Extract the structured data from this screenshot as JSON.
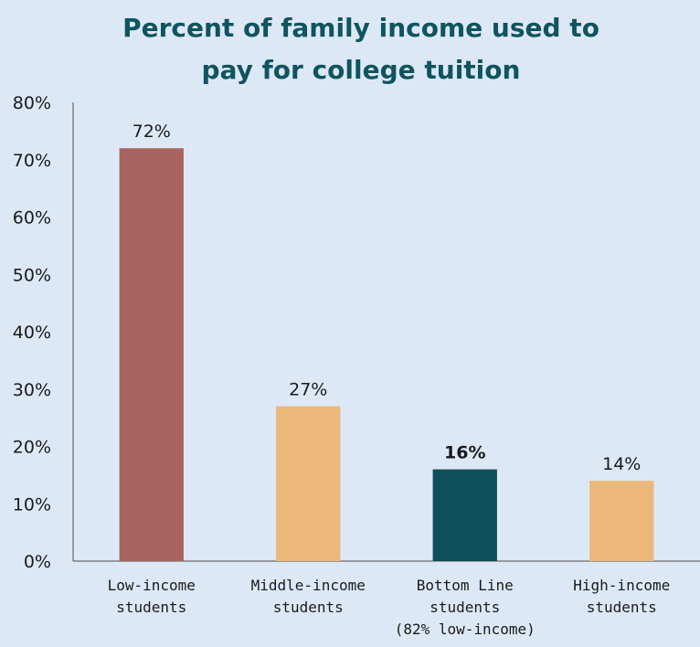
{
  "chart_data": {
    "type": "bar",
    "title_lines": [
      "Percent of family income used to",
      "pay for college tuition"
    ],
    "categories": [
      [
        "Low-income",
        "students"
      ],
      [
        "Middle-income",
        "students"
      ],
      [
        "Bottom Line",
        "students",
        "(82% low-income)"
      ],
      [
        "High-income",
        "students"
      ]
    ],
    "values": [
      72,
      27,
      16,
      14
    ],
    "value_labels": [
      "72%",
      "27%",
      "16%",
      "14%"
    ],
    "bar_colors": [
      "#a86461",
      "#ebb87a",
      "#0d4f5b",
      "#ebb87a"
    ],
    "highlight_index": 2,
    "yticks": [
      "0%",
      "10%",
      "20%",
      "30%",
      "40%",
      "50%",
      "60%",
      "70%",
      "80%"
    ],
    "ylim": [
      0,
      80
    ],
    "grid": false,
    "legend": "none"
  }
}
